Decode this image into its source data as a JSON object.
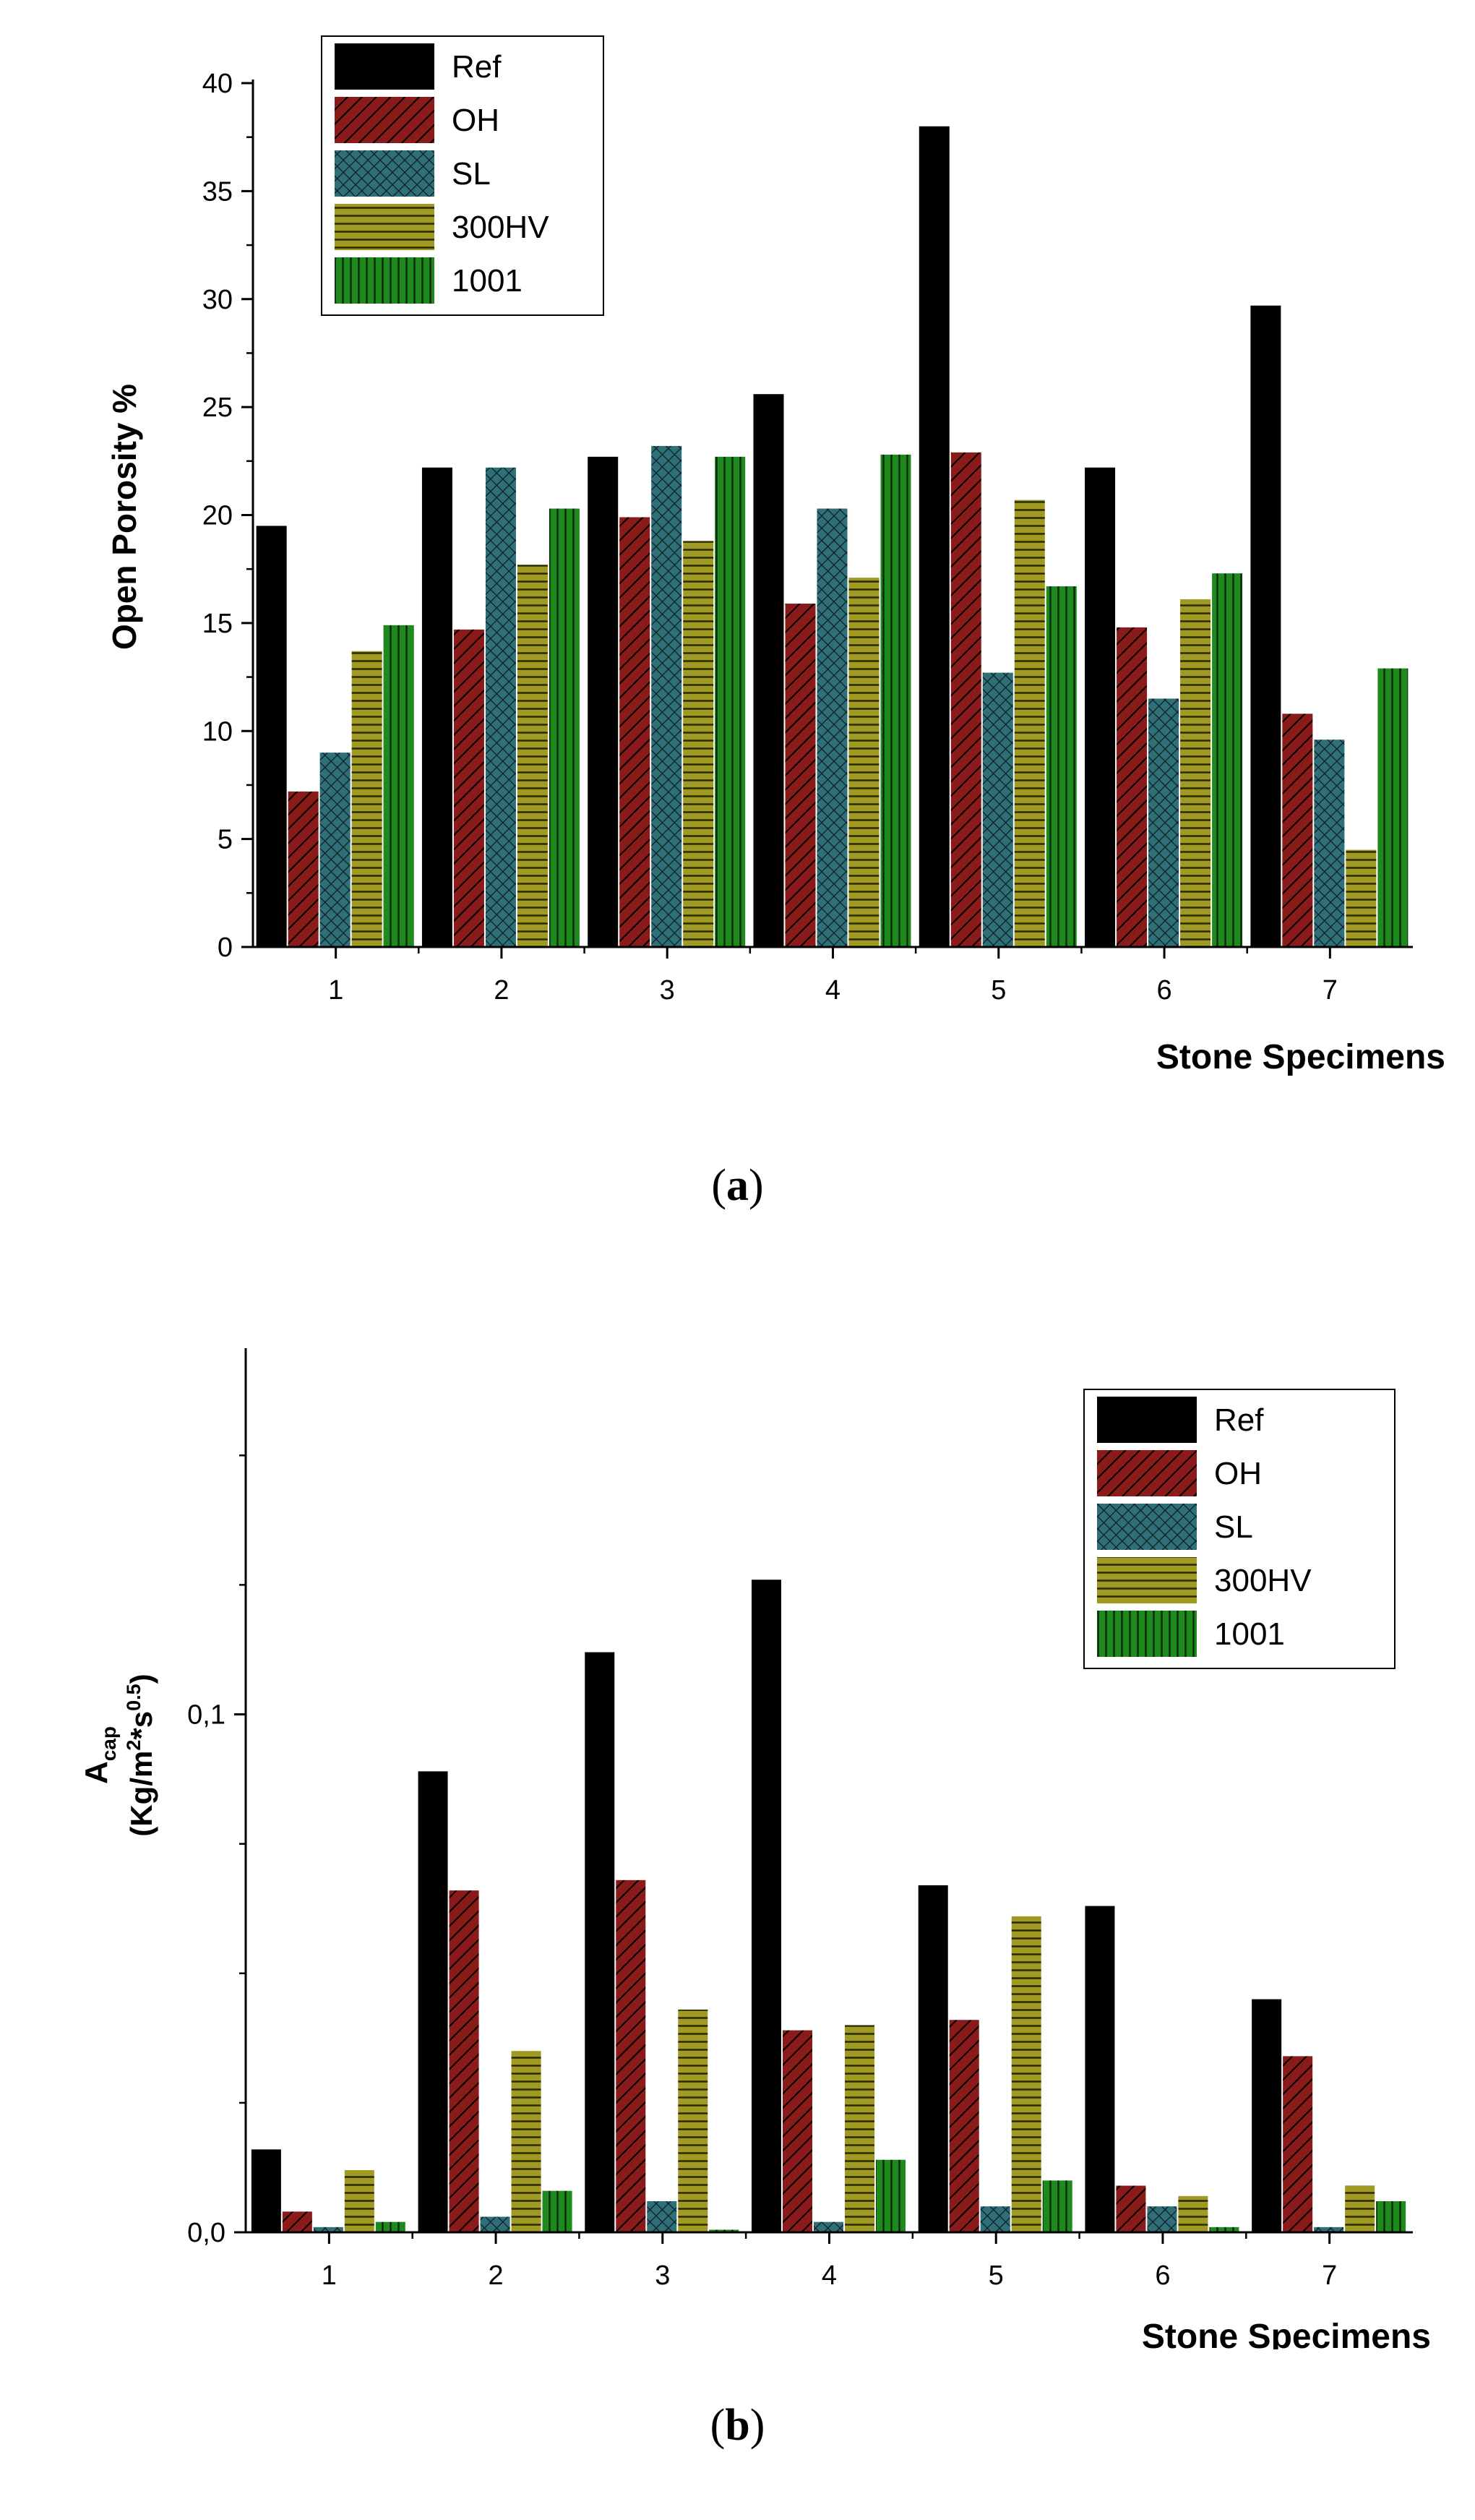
{
  "colors": {
    "Ref": "#000000",
    "OH": "#8b1a1a",
    "SL": "#2f6f78",
    "300HV": "#a19a22",
    "1001": "#1e8a1e"
  },
  "chart_data": [
    {
      "type": "bar",
      "categories": [
        "1",
        "2",
        "3",
        "4",
        "5",
        "6",
        "7"
      ],
      "xlabel": "Stone Specimens",
      "ylabel": "Open Porosity %",
      "ylim": [
        0,
        40
      ],
      "yticks": [
        "0",
        "5",
        "10",
        "15",
        "20",
        "25",
        "30",
        "35",
        "40"
      ],
      "legend_position": "top-left",
      "series": [
        {
          "name": "Ref",
          "values": [
            19.5,
            22.2,
            22.7,
            25.6,
            38.0,
            22.2,
            29.7
          ]
        },
        {
          "name": "OH",
          "values": [
            7.2,
            14.7,
            19.9,
            15.9,
            22.9,
            14.8,
            10.8
          ]
        },
        {
          "name": "SL",
          "values": [
            9.0,
            22.2,
            23.2,
            20.3,
            12.7,
            11.5,
            9.6
          ]
        },
        {
          "name": "300HV",
          "values": [
            13.7,
            17.7,
            18.8,
            17.1,
            20.7,
            16.1,
            4.5
          ]
        },
        {
          "name": "1001",
          "values": [
            14.9,
            20.3,
            22.7,
            22.8,
            16.7,
            17.3,
            12.9
          ]
        }
      ],
      "caption": "a"
    },
    {
      "type": "bar",
      "categories": [
        "1",
        "2",
        "3",
        "4",
        "5",
        "6",
        "7"
      ],
      "xlabel": "Stone Specimens",
      "ylabel_main": "A",
      "ylabel_sub": "cap",
      "ylabel_units_pre": "(Kg/m",
      "ylabel_units_sup1": "2",
      "ylabel_units_mid": "*s",
      "ylabel_units_sup2": "0.5",
      "ylabel_units_post": ")",
      "ylim": [
        0,
        0.17
      ],
      "yticks": [
        "0,0",
        "0,1"
      ],
      "legend_position": "top-right",
      "series": [
        {
          "name": "Ref",
          "values": [
            0.016,
            0.089,
            0.112,
            0.126,
            0.067,
            0.063,
            0.045
          ]
        },
        {
          "name": "OH",
          "values": [
            0.004,
            0.066,
            0.068,
            0.039,
            0.041,
            0.009,
            0.034
          ]
        },
        {
          "name": "SL",
          "values": [
            0.001,
            0.003,
            0.006,
            0.002,
            0.005,
            0.005,
            0.001
          ]
        },
        {
          "name": "300HV",
          "values": [
            0.012,
            0.035,
            0.043,
            0.04,
            0.061,
            0.007,
            0.009
          ]
        },
        {
          "name": "1001",
          "values": [
            0.002,
            0.008,
            0.0005,
            0.014,
            0.01,
            0.001,
            0.006
          ]
        }
      ],
      "caption": "b"
    }
  ]
}
